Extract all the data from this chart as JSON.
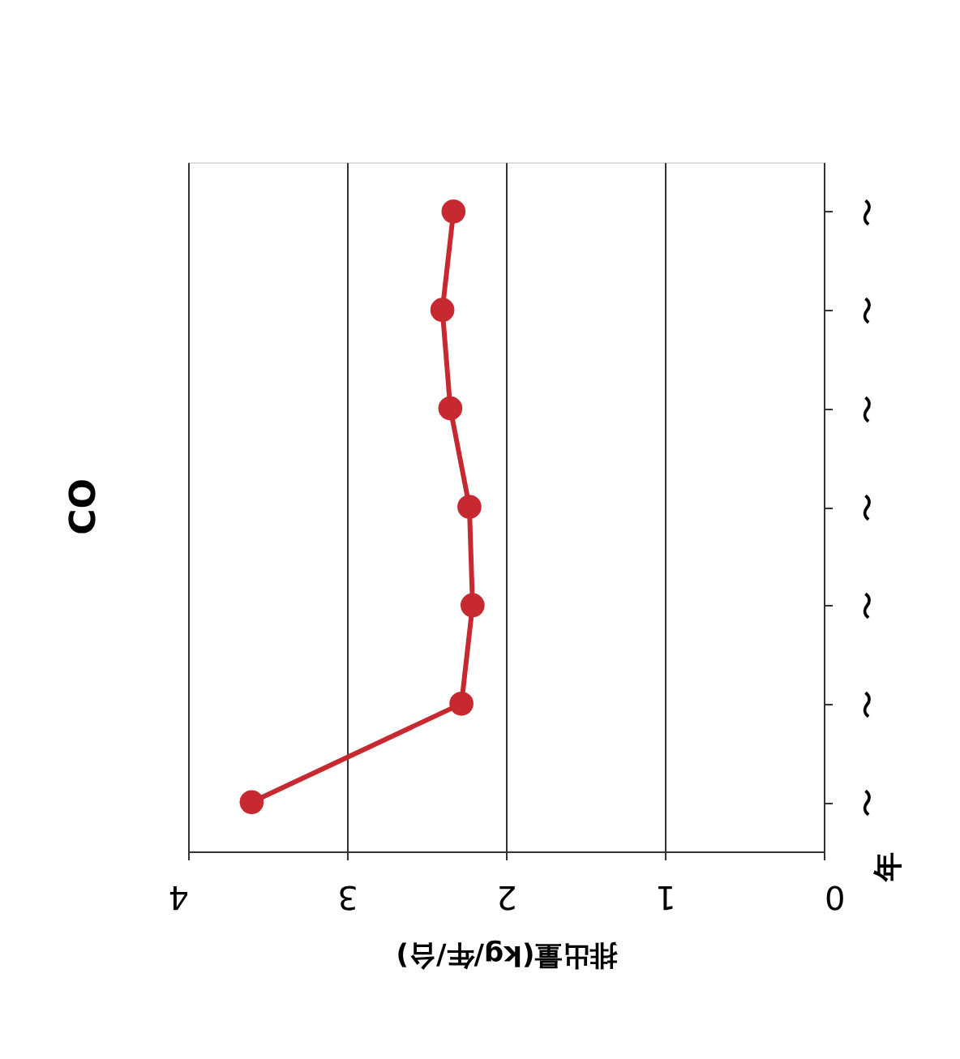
{
  "chart_data": {
    "type": "line",
    "orientation": "horizontal",
    "title": "CO",
    "xlabel": "排出量(kg/年/台)",
    "ylabel": "年",
    "categories": [
      "〜",
      "〜",
      "〜",
      "〜",
      "〜",
      "〜",
      "〜"
    ],
    "series": [
      {
        "color": "#c62a30",
        "values": [
          2.33,
          2.4,
          2.35,
          2.23,
          2.21,
          2.28,
          3.6
        ]
      }
    ],
    "xlim": [
      4,
      0
    ],
    "xticks": [
      4,
      3,
      2,
      1,
      0
    ],
    "grid": "x",
    "marker": "circle",
    "line_style": "solid",
    "legend": false
  }
}
